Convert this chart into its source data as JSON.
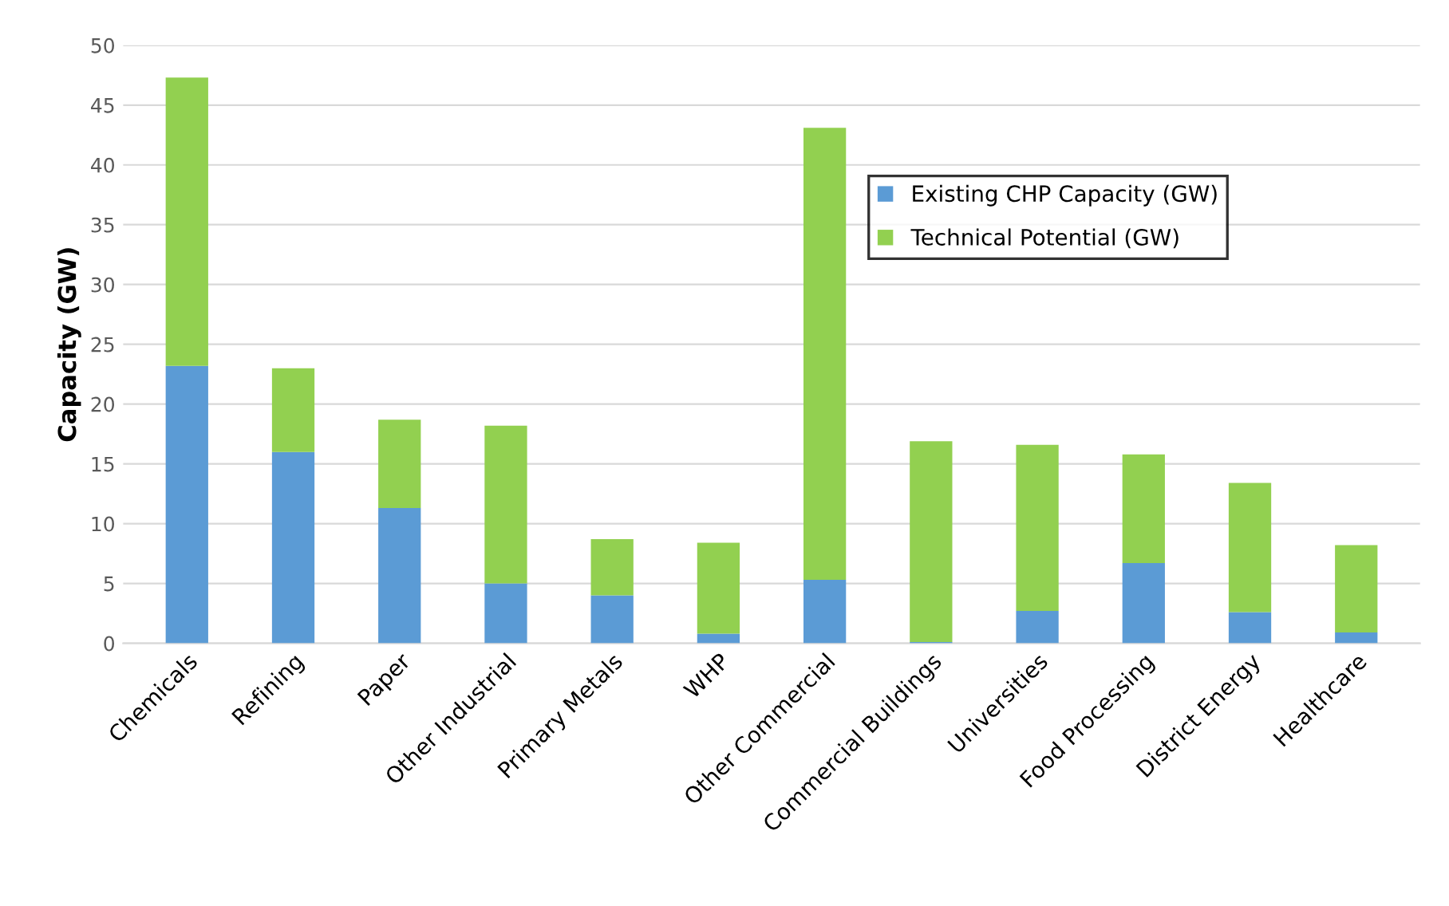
{
  "chart_data": {
    "type": "bar",
    "stacked": true,
    "ylabel": "Capacity (GW)",
    "categories": [
      "Chemicals",
      "Refining",
      "Paper",
      "Other Industrial",
      "Primary Metals",
      "WHP",
      "Other Commercial",
      "Commercial Buildings",
      "Universities",
      "Food Processing",
      "District Energy",
      "Healthcare"
    ],
    "series": [
      {
        "name": "Existing CHP Capacity (GW)",
        "color": "#5b9bd5",
        "values": [
          23.2,
          16.0,
          11.3,
          5.0,
          4.0,
          0.8,
          5.3,
          0.1,
          2.7,
          6.7,
          2.6,
          0.9
        ]
      },
      {
        "name": "Technical Potential (GW)",
        "color": "#92d050",
        "values": [
          24.1,
          7.0,
          7.4,
          13.2,
          4.7,
          7.6,
          37.8,
          16.8,
          13.9,
          9.1,
          10.8,
          7.3
        ]
      }
    ],
    "ylim": [
      0,
      50
    ],
    "yticks": [
      0,
      5,
      10,
      15,
      20,
      25,
      30,
      35,
      40,
      45,
      50
    ],
    "grid": "y",
    "legend": "top right"
  }
}
